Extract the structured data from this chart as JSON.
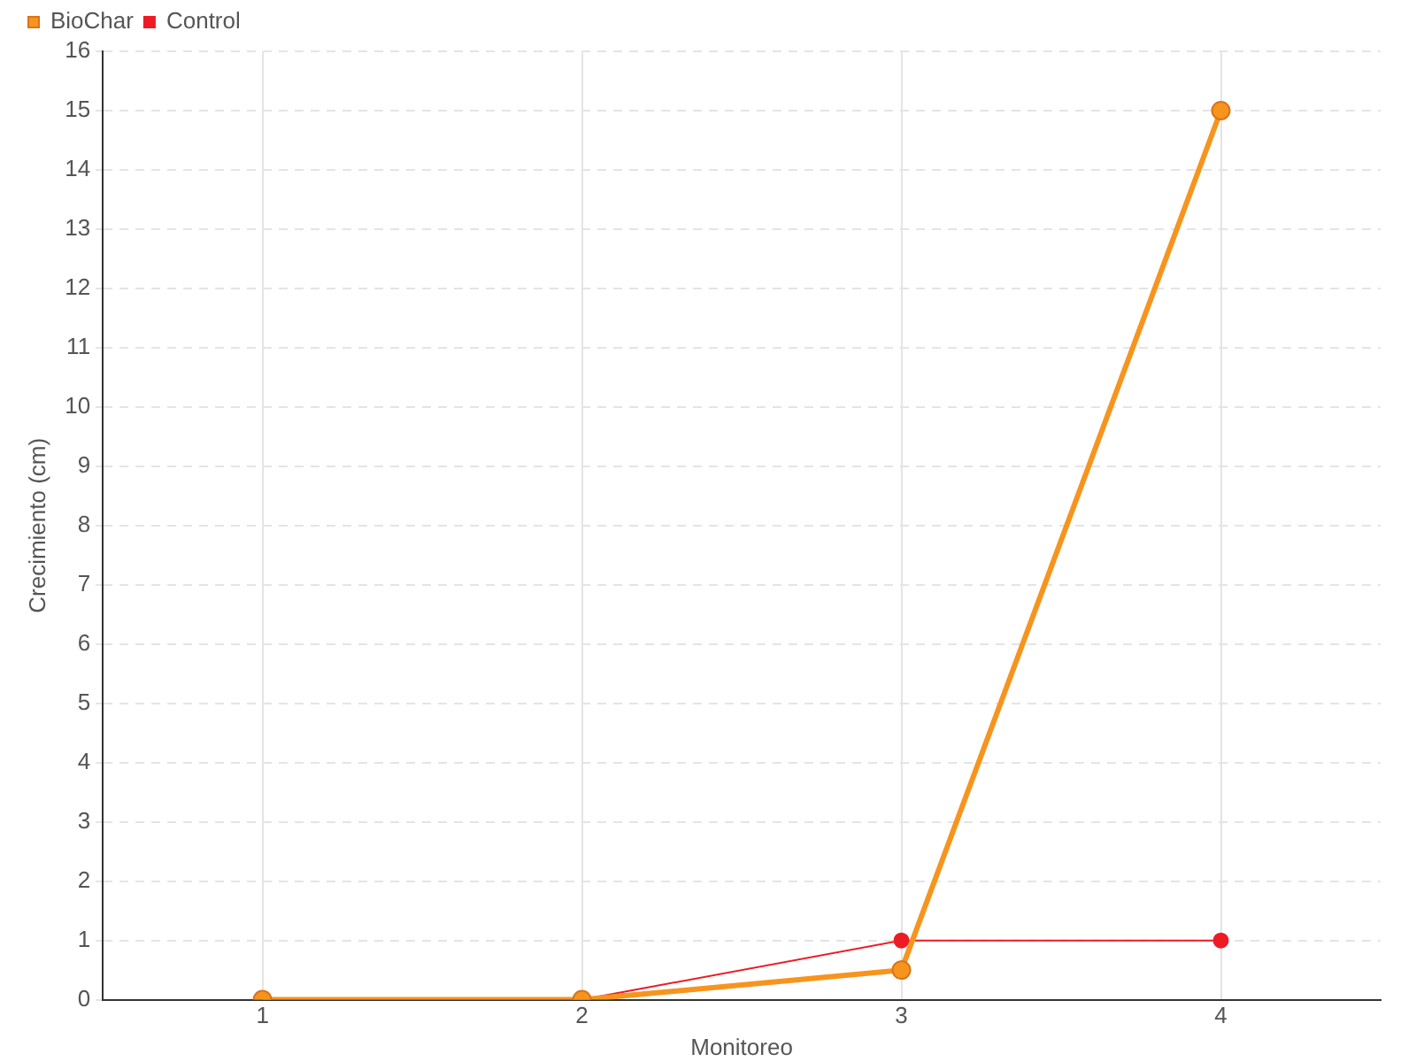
{
  "chart_data": {
    "type": "line",
    "xlabel": "Monitoreo",
    "ylabel": "Crecimiento (cm)",
    "categories": [
      "1",
      "2",
      "3",
      "4"
    ],
    "series": [
      {
        "name": "BioChar",
        "color": "#f7941d",
        "values": [
          0,
          0,
          0.5,
          15
        ]
      },
      {
        "name": "Control",
        "color": "#ed1c24",
        "values": [
          0,
          0,
          1,
          1
        ]
      }
    ],
    "ylim": [
      0,
      16
    ],
    "yticks": [
      0,
      1,
      2,
      3,
      4,
      5,
      6,
      7,
      8,
      9,
      10,
      11,
      12,
      13,
      14,
      15,
      16
    ],
    "grid": true,
    "legend": "top left",
    "marker": "circle",
    "line_style": "solid"
  }
}
